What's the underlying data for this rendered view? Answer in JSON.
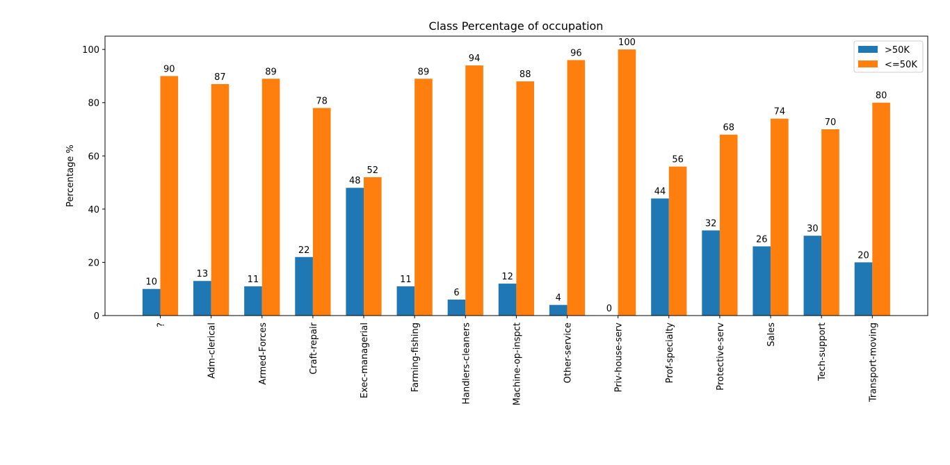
{
  "chart_data": {
    "type": "bar",
    "title": "Class Percentage of occupation",
    "xlabel": "",
    "ylabel": "Percentage %",
    "ylim": [
      0,
      105
    ],
    "yticks": [
      0,
      20,
      40,
      60,
      80,
      100
    ],
    "grid": false,
    "legend_position": "top-right",
    "categories": [
      "?",
      "Adm-clerical",
      "Armed-Forces",
      "Craft-repair",
      "Exec-managerial",
      "Farming-fishing",
      "Handlers-cleaners",
      "Machine-op-inspct",
      "Other-service",
      "Priv-house-serv",
      "Prof-specialty",
      "Protective-serv",
      "Sales",
      "Tech-support",
      "Transport-moving"
    ],
    "series": [
      {
        "name": ">50K",
        "color": "#1f77b4",
        "values": [
          10,
          13,
          11,
          22,
          48,
          11,
          6,
          12,
          4,
          0,
          44,
          32,
          26,
          30,
          20
        ]
      },
      {
        "name": "<=50K",
        "color": "#ff7f0e",
        "values": [
          90,
          87,
          89,
          78,
          52,
          89,
          94,
          88,
          96,
          100,
          56,
          68,
          74,
          70,
          80
        ]
      }
    ]
  }
}
